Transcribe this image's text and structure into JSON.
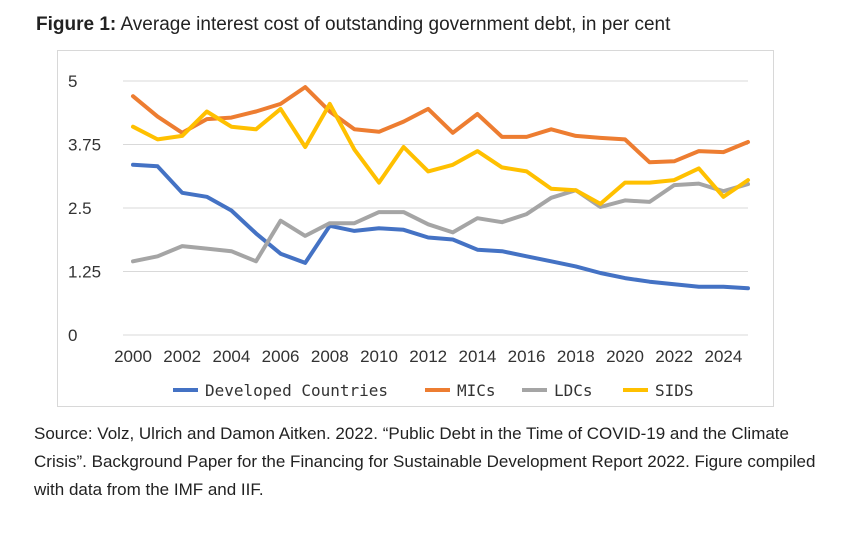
{
  "figure": {
    "label": "Figure 1:",
    "title": " Average interest cost of outstanding government debt, in per cent"
  },
  "source": {
    "text": "Source: Volz, Ulrich and Damon Aitken. 2022. “Public Debt in the Time of COVID-19 and the Climate Crisis”. Background Paper for the Financing for Sustainable Development Report 2022. Figure compiled with data from  the IMF and IIF."
  },
  "chart_data": {
    "type": "line",
    "title": "Average interest cost of outstanding government debt, in per cent",
    "xlabel": "",
    "ylabel": "",
    "x": [
      2000,
      2001,
      2002,
      2003,
      2004,
      2005,
      2006,
      2007,
      2008,
      2009,
      2010,
      2011,
      2012,
      2013,
      2014,
      2015,
      2016,
      2017,
      2018,
      2019,
      2020,
      2021,
      2022,
      2023,
      2024,
      2025
    ],
    "x_ticks": [
      "2000",
      "2002",
      "2004",
      "2006",
      "2008",
      "2010",
      "2012",
      "2014",
      "2016",
      "2018",
      "2020",
      "2022",
      "2024"
    ],
    "y_ticks": [
      "0",
      "1.25",
      "2.5",
      "3.75",
      "5"
    ],
    "ylim": [
      0,
      5
    ],
    "grid": "horizontal",
    "legend": "bottom",
    "series": [
      {
        "name": "Developed Countries",
        "color": "#4472C4",
        "values": [
          3.35,
          3.32,
          2.8,
          2.72,
          2.45,
          2.0,
          1.6,
          1.42,
          2.15,
          2.05,
          2.1,
          2.07,
          1.92,
          1.88,
          1.68,
          1.65,
          1.55,
          1.45,
          1.35,
          1.22,
          1.12,
          1.05,
          1.0,
          0.95,
          0.95,
          0.92
        ]
      },
      {
        "name": "MICs",
        "color": "#ED7D31",
        "values": [
          4.7,
          4.3,
          3.98,
          4.25,
          4.28,
          4.4,
          4.55,
          4.88,
          4.4,
          4.05,
          4.0,
          4.2,
          4.45,
          3.98,
          4.35,
          3.9,
          3.9,
          4.05,
          3.92,
          3.88,
          3.85,
          3.4,
          3.42,
          3.62,
          3.6,
          3.8
        ]
      },
      {
        "name": "LDCs",
        "color": "#A5A5A5",
        "values": [
          1.45,
          1.55,
          1.75,
          1.7,
          1.65,
          1.45,
          2.25,
          1.95,
          2.2,
          2.2,
          2.42,
          2.42,
          2.18,
          2.02,
          2.3,
          2.22,
          2.38,
          2.7,
          2.85,
          2.52,
          2.65,
          2.62,
          2.95,
          2.98,
          2.83,
          2.97
        ]
      },
      {
        "name": "SIDS",
        "color": "#FFC000",
        "values": [
          4.1,
          3.85,
          3.92,
          4.4,
          4.1,
          4.05,
          4.45,
          3.7,
          4.55,
          3.65,
          3.0,
          3.7,
          3.22,
          3.35,
          3.62,
          3.3,
          3.22,
          2.88,
          2.85,
          2.58,
          3.0,
          3.0,
          3.05,
          3.28,
          2.72,
          3.05
        ]
      }
    ]
  }
}
